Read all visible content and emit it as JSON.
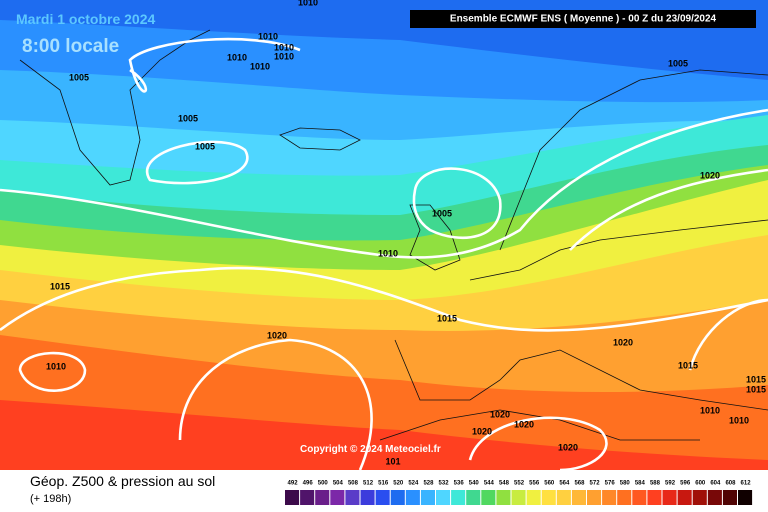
{
  "date": "Mardi 1 octobre 2024",
  "time": "8:00 locale",
  "header": "Ensemble ECMWF ENS  ( Moyenne )  -  00 Z du 23/09/2024",
  "copyright": "Copyright © 2024 Meteociel.fr",
  "footer": {
    "title": "Géop. Z500 & pression au sol",
    "subtitle": "(+ 198h)"
  },
  "scale": {
    "values": [
      492,
      496,
      500,
      504,
      508,
      512,
      516,
      520,
      524,
      528,
      532,
      536,
      540,
      544,
      548,
      552,
      556,
      560,
      564,
      568,
      572,
      576,
      580,
      584,
      588,
      592,
      596,
      600,
      604,
      608,
      612
    ],
    "colors": [
      "#3c0a4a",
      "#50146a",
      "#6a1e8a",
      "#7c28a8",
      "#5a3cc8",
      "#3c3cdc",
      "#2a4ef0",
      "#1e6cf0",
      "#2a90ff",
      "#39b4ff",
      "#4fd6ff",
      "#3ee8d8",
      "#40d890",
      "#50d860",
      "#90e040",
      "#c8ec40",
      "#f0f040",
      "#ffe040",
      "#ffd040",
      "#ffb838",
      "#ffa030",
      "#ff8828",
      "#ff7020",
      "#ff5820",
      "#ff4020",
      "#e82818",
      "#c81810",
      "#a01008",
      "#780808",
      "#500404",
      "#100000"
    ]
  },
  "isobar_labels": [
    1010,
    1010,
    1010,
    1010,
    1010,
    1010,
    1005,
    1005,
    1005,
    1005,
    1005,
    1020,
    1010,
    1015,
    1015,
    1020,
    1020,
    1010,
    1015,
    1015,
    1015,
    1010,
    1010,
    1020,
    1020,
    1020,
    1020,
    101
  ]
}
